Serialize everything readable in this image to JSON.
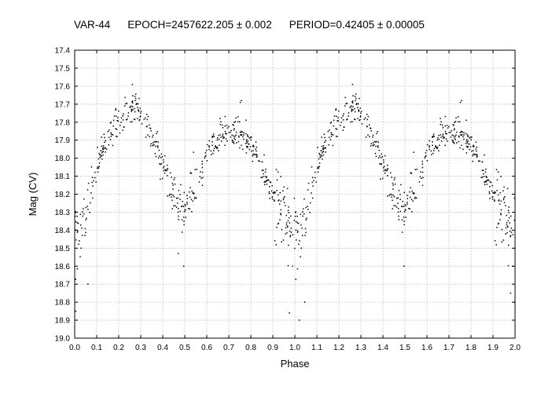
{
  "chart_data": {
    "type": "scatter",
    "title_parts": {
      "star": "VAR-44",
      "epoch": "EPOCH=2457622.205 ± 0.002",
      "period": "PERIOD=0.42405 ± 0.00005"
    },
    "xlabel": "Phase",
    "ylabel": "Mag (CV)",
    "xlim": [
      0.0,
      2.0
    ],
    "ylim": [
      17.4,
      19.0
    ],
    "y_inverted": true,
    "grid": true,
    "x_ticks": [
      "0.0",
      "0.1",
      "0.2",
      "0.3",
      "0.4",
      "0.5",
      "0.6",
      "0.7",
      "0.8",
      "0.9",
      "1.0",
      "1.1",
      "1.2",
      "1.3",
      "1.4",
      "1.5",
      "1.6",
      "1.7",
      "1.8",
      "1.9",
      "2.0"
    ],
    "y_ticks": [
      "17.4",
      "17.5",
      "17.6",
      "17.7",
      "17.8",
      "17.9",
      "18.0",
      "18.1",
      "18.2",
      "18.3",
      "18.4",
      "18.5",
      "18.6",
      "18.7",
      "18.8",
      "18.9",
      "19.0"
    ],
    "marker_color": "#000000",
    "light_curve_profile": {
      "phase": [
        0.0,
        0.05,
        0.1,
        0.15,
        0.2,
        0.25,
        0.3,
        0.35,
        0.4,
        0.45,
        0.5,
        0.55,
        0.6,
        0.65,
        0.7,
        0.75,
        0.8,
        0.85,
        0.9,
        0.95,
        1.0
      ],
      "mag": [
        18.5,
        18.3,
        18.05,
        17.88,
        17.78,
        17.73,
        17.76,
        17.88,
        18.05,
        18.2,
        18.27,
        18.15,
        17.98,
        17.87,
        17.83,
        17.86,
        17.93,
        18.05,
        18.2,
        18.32,
        18.42
      ],
      "scatter": 0.06
    },
    "points": [
      [
        0.262,
        17.59
      ],
      [
        0.757,
        17.68
      ],
      [
        0.752,
        17.69
      ],
      [
        1.262,
        17.59
      ],
      [
        1.757,
        17.68
      ],
      [
        1.752,
        17.69
      ],
      [
        0.495,
        18.6
      ],
      [
        1.495,
        18.6
      ],
      [
        1.02,
        18.9
      ],
      [
        1.98,
        18.75
      ],
      [
        0.005,
        18.85
      ],
      [
        0.06,
        18.7
      ],
      [
        1.998,
        18.8
      ],
      [
        1.045,
        18.8
      ],
      [
        0.145,
        17.95
      ],
      [
        0.205,
        17.86
      ],
      [
        0.975,
        18.86
      ],
      [
        0.47,
        18.53
      ]
    ]
  }
}
